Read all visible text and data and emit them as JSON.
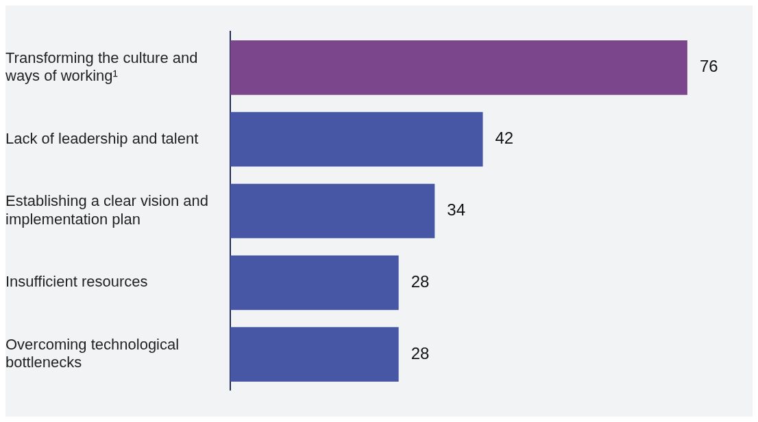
{
  "chart_data": {
    "type": "bar",
    "orientation": "horizontal",
    "categories": [
      "Transforming the culture and ways of working¹",
      "Lack of leadership and talent",
      "Establishing a clear vision and implementation plan",
      "Insufficient resources",
      "Overcoming technological bottlenecks"
    ],
    "values": [
      76,
      42,
      34,
      28,
      28
    ],
    "colors": [
      "#7b468b",
      "#4757a6",
      "#4757a6",
      "#4757a6",
      "#4757a6"
    ],
    "data_labels": true,
    "grid": false,
    "legend": false
  }
}
